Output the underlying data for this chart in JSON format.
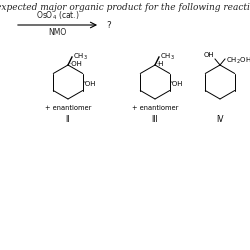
{
  "title_text": "expected major organic product for the following reaction",
  "reagent_above": "OsO₄ (cat.)",
  "reagent_below": "NMO",
  "question_mark": "?",
  "label_II": "II",
  "label_III": "III",
  "label_IV": "IV",
  "enantiomer_text": "+ enantiomer",
  "bg_color": "#ffffff",
  "text_color": "#222222",
  "font_size_title": 6.5,
  "font_size_small": 5.0,
  "font_size_roman": 5.5,
  "font_size_reagent": 5.5
}
